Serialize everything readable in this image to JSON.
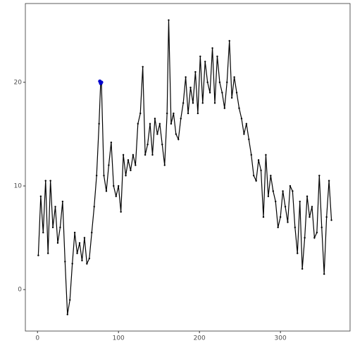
{
  "chart_data": {
    "type": "line",
    "series": [
      {
        "color": "#000000",
        "x": [
          1,
          4,
          7,
          10,
          13,
          16,
          19,
          22,
          25,
          28,
          31,
          34,
          37,
          40,
          43,
          46,
          49,
          52,
          55,
          58,
          61,
          64,
          67,
          70,
          73,
          76,
          78,
          79,
          82,
          85,
          88,
          91,
          94,
          97,
          100,
          103,
          106,
          109,
          112,
          115,
          118,
          121,
          124,
          127,
          130,
          133,
          136,
          139,
          142,
          145,
          148,
          151,
          154,
          157,
          160,
          162,
          165,
          168,
          171,
          174,
          177,
          180,
          183,
          186,
          189,
          192,
          195,
          198,
          201,
          204,
          207,
          210,
          213,
          216,
          219,
          222,
          225,
          228,
          231,
          234,
          237,
          240,
          243,
          246,
          249,
          252,
          255,
          258,
          261,
          264,
          267,
          270,
          273,
          276,
          279,
          282,
          285,
          288,
          291,
          294,
          297,
          300,
          303,
          306,
          309,
          312,
          315,
          318,
          321,
          324,
          327,
          330,
          333,
          336,
          339,
          342,
          345,
          348,
          351,
          354,
          357,
          360,
          363
        ],
        "values": [
          3.3,
          9,
          5.5,
          10.5,
          3.5,
          10.5,
          6,
          8,
          4.5,
          6,
          8.5,
          2.7,
          -2.4,
          -1,
          2.5,
          5.5,
          3.5,
          4.5,
          2.8,
          5,
          2.5,
          3,
          5.5,
          8,
          11,
          16,
          20,
          19.8,
          11,
          9.5,
          12,
          14.2,
          10,
          9,
          10,
          7.5,
          13,
          11,
          12.5,
          11.5,
          13,
          12,
          16,
          17,
          21.5,
          13,
          14,
          16,
          13,
          16.5,
          15,
          16,
          14,
          12,
          17,
          26,
          16,
          17,
          15,
          14.5,
          16.5,
          18,
          20.5,
          17,
          19.5,
          18,
          21,
          17,
          22.5,
          18,
          22,
          20,
          19,
          23.3,
          18,
          22.5,
          20,
          19,
          17.5,
          20,
          24,
          18.5,
          20.5,
          19,
          17.5,
          16.5,
          15,
          16,
          14.5,
          13,
          11,
          10.5,
          12.5,
          11.5,
          7,
          13,
          9,
          11,
          9.5,
          8.5,
          6,
          7,
          9.5,
          8,
          6.5,
          10,
          9.5,
          6,
          3.5,
          8.5,
          2,
          5,
          9,
          7,
          8,
          5,
          5.5,
          11,
          6,
          1.5,
          7,
          10.5,
          6.7
        ]
      },
      {
        "color": "#0000cd",
        "x": [
          77,
          78,
          79
        ],
        "values": [
          20.1,
          19.9,
          20.0
        ]
      }
    ],
    "xlim": [
      -15,
      386
    ],
    "ylim": [
      -4,
      27.6
    ],
    "xticks": [
      0,
      100,
      200,
      300
    ],
    "yticks": [
      0,
      10,
      20
    ],
    "grid": false
  }
}
